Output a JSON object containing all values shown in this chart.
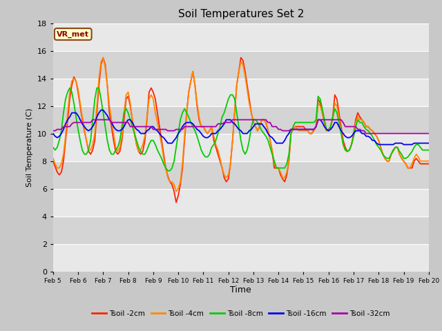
{
  "title": "Soil Temperatures Set 2",
  "xlabel": "Time",
  "ylabel": "Soil Temperature (C)",
  "ylim": [
    0,
    18
  ],
  "yticks": [
    0,
    2,
    4,
    6,
    8,
    10,
    12,
    14,
    16,
    18
  ],
  "annotation_text": "VR_met",
  "annotation_color": "#8b0000",
  "annotation_bg": "#ffffcc",
  "annotation_border": "#8b4513",
  "colors": {
    "Tsoil -2cm": "#ff2200",
    "Tsoil -4cm": "#ff8800",
    "Tsoil -8cm": "#00cc00",
    "Tsoil -16cm": "#0000ee",
    "Tsoil -32cm": "#aa00aa"
  },
  "series_labels": [
    "Tsoil -2cm",
    "Tsoil -4cm",
    "Tsoil -8cm",
    "Tsoil -16cm",
    "Tsoil -32cm"
  ],
  "xtick_labels": [
    "Feb 5",
    "Feb 6",
    "Feb 7",
    "Feb 8",
    "Feb 9",
    "Feb 10",
    "Feb 11",
    "Feb 12",
    "Feb 13",
    "Feb 14",
    "Feb 15",
    "Feb 16",
    "Feb 17",
    "Feb 18",
    "Feb 19",
    "Feb 20"
  ],
  "band_colors": [
    "#e8e8e8",
    "#d4d4d4"
  ],
  "fig_facecolor": "#c8c8c8",
  "data": {
    "x_days": [
      5.0,
      5.083,
      5.167,
      5.25,
      5.333,
      5.417,
      5.5,
      5.583,
      5.667,
      5.75,
      5.833,
      5.917,
      6.0,
      6.083,
      6.167,
      6.25,
      6.333,
      6.417,
      6.5,
      6.583,
      6.667,
      6.75,
      6.833,
      6.917,
      7.0,
      7.083,
      7.167,
      7.25,
      7.333,
      7.417,
      7.5,
      7.583,
      7.667,
      7.75,
      7.833,
      7.917,
      8.0,
      8.083,
      8.167,
      8.25,
      8.333,
      8.417,
      8.5,
      8.583,
      8.667,
      8.75,
      8.833,
      8.917,
      9.0,
      9.083,
      9.167,
      9.25,
      9.333,
      9.417,
      9.5,
      9.583,
      9.667,
      9.75,
      9.833,
      9.917,
      10.0,
      10.083,
      10.167,
      10.25,
      10.333,
      10.417,
      10.5,
      10.583,
      10.667,
      10.75,
      10.833,
      10.917,
      11.0,
      11.083,
      11.167,
      11.25,
      11.333,
      11.417,
      11.5,
      11.583,
      11.667,
      11.75,
      11.833,
      11.917,
      12.0,
      12.083,
      12.167,
      12.25,
      12.333,
      12.417,
      12.5,
      12.583,
      12.667,
      12.75,
      12.833,
      12.917,
      13.0,
      13.083,
      13.167,
      13.25,
      13.333,
      13.417,
      13.5,
      13.583,
      13.667,
      13.75,
      13.833,
      13.917,
      14.0,
      14.083,
      14.167,
      14.25,
      14.333,
      14.417,
      14.5,
      14.583,
      14.667,
      14.75,
      14.833,
      14.917,
      15.0,
      15.083,
      15.167,
      15.25,
      15.333,
      15.417,
      15.5,
      15.583,
      15.667,
      15.75,
      15.833,
      15.917,
      16.0,
      16.083,
      16.167,
      16.25,
      16.333,
      16.417,
      16.5,
      16.583,
      16.667,
      16.75,
      16.833,
      16.917,
      17.0,
      17.083,
      17.167,
      17.25,
      17.333,
      17.417,
      17.5,
      17.583,
      17.667,
      17.75,
      17.833,
      17.917,
      18.0,
      18.083,
      18.167,
      18.25,
      18.333,
      18.417,
      18.5,
      18.583,
      18.667,
      18.75,
      18.833,
      18.917,
      19.0,
      19.083,
      19.167,
      19.25,
      19.333,
      19.417,
      19.5,
      19.583,
      19.667,
      19.75,
      19.833,
      19.917,
      20.0
    ],
    "Tsoil -2cm": [
      8.0,
      7.6,
      7.2,
      7.0,
      7.2,
      8.0,
      9.5,
      11.0,
      12.5,
      13.5,
      14.1,
      13.8,
      13.0,
      12.0,
      11.0,
      10.2,
      9.5,
      8.7,
      8.5,
      8.8,
      9.5,
      11.5,
      13.5,
      15.0,
      15.5,
      15.0,
      13.5,
      11.5,
      10.5,
      9.5,
      8.7,
      8.5,
      8.7,
      9.5,
      11.0,
      12.5,
      12.7,
      12.0,
      11.0,
      10.0,
      9.2,
      8.7,
      8.5,
      8.7,
      9.5,
      11.0,
      13.0,
      13.3,
      13.0,
      12.5,
      11.5,
      10.5,
      9.5,
      8.5,
      7.5,
      6.9,
      6.5,
      6.3,
      5.8,
      5.0,
      5.5,
      6.3,
      7.5,
      9.5,
      11.5,
      13.0,
      13.8,
      14.5,
      13.5,
      12.0,
      11.0,
      10.5,
      10.5,
      10.2,
      10.0,
      10.2,
      10.5,
      9.5,
      9.0,
      8.5,
      8.0,
      7.5,
      6.8,
      6.5,
      6.7,
      7.8,
      9.5,
      11.5,
      13.5,
      14.5,
      15.5,
      15.3,
      14.5,
      13.5,
      12.5,
      11.5,
      10.8,
      10.5,
      10.2,
      10.5,
      11.0,
      11.0,
      10.8,
      10.2,
      9.5,
      8.7,
      7.5,
      7.5,
      7.5,
      7.0,
      6.7,
      6.5,
      7.0,
      8.0,
      10.0,
      10.3,
      10.5,
      10.5,
      10.5,
      10.5,
      10.5,
      10.3,
      10.2,
      10.0,
      10.0,
      10.3,
      10.5,
      12.5,
      12.2,
      11.5,
      10.8,
      10.2,
      10.3,
      10.5,
      11.2,
      12.8,
      12.5,
      11.5,
      10.5,
      9.5,
      9.0,
      8.7,
      8.8,
      9.2,
      10.0,
      11.0,
      11.5,
      11.2,
      11.0,
      10.8,
      10.5,
      10.5,
      10.3,
      10.2,
      10.0,
      9.8,
      9.5,
      9.0,
      8.5,
      8.2,
      8.0,
      8.0,
      8.5,
      8.8,
      9.0,
      9.0,
      8.5,
      8.2,
      8.0,
      7.8,
      7.5,
      7.5,
      7.5,
      8.0,
      8.2,
      8.0,
      7.8,
      7.8,
      7.8,
      7.8,
      7.8
    ],
    "Tsoil -4cm": [
      8.2,
      7.8,
      7.5,
      7.5,
      7.8,
      8.5,
      9.8,
      11.5,
      13.0,
      13.8,
      14.0,
      13.8,
      13.2,
      12.2,
      11.2,
      10.3,
      9.5,
      8.8,
      8.8,
      9.2,
      10.0,
      12.0,
      14.0,
      15.2,
      15.5,
      14.8,
      13.5,
      12.0,
      11.0,
      10.0,
      9.0,
      8.7,
      9.0,
      9.8,
      11.5,
      12.8,
      13.0,
      12.2,
      11.0,
      10.0,
      9.2,
      8.7,
      8.8,
      9.2,
      9.8,
      11.2,
      12.5,
      12.8,
      12.5,
      11.5,
      10.8,
      10.0,
      9.2,
      8.2,
      7.5,
      6.8,
      6.5,
      6.5,
      6.3,
      5.8,
      6.0,
      6.5,
      7.8,
      9.8,
      11.5,
      13.0,
      13.8,
      14.5,
      13.5,
      12.2,
      11.2,
      10.5,
      10.5,
      10.2,
      10.0,
      10.2,
      10.5,
      9.8,
      9.2,
      8.8,
      8.2,
      7.5,
      7.0,
      6.8,
      7.0,
      7.8,
      9.5,
      11.5,
      13.5,
      14.5,
      15.2,
      15.0,
      14.2,
      13.2,
      12.2,
      11.5,
      10.8,
      10.5,
      10.2,
      10.5,
      11.0,
      11.0,
      10.8,
      10.2,
      9.5,
      8.8,
      7.8,
      7.5,
      7.5,
      7.2,
      6.8,
      6.8,
      7.2,
      8.0,
      10.0,
      10.3,
      10.5,
      10.3,
      10.2,
      10.2,
      10.2,
      10.2,
      10.2,
      10.0,
      10.0,
      10.2,
      10.5,
      12.2,
      12.0,
      11.5,
      10.8,
      10.2,
      10.2,
      10.5,
      11.0,
      12.2,
      12.0,
      11.2,
      10.2,
      9.2,
      8.8,
      8.7,
      8.8,
      9.2,
      9.8,
      10.8,
      11.2,
      11.0,
      11.0,
      10.8,
      10.5,
      10.5,
      10.3,
      10.2,
      10.0,
      9.8,
      9.5,
      9.0,
      8.5,
      8.2,
      8.0,
      8.0,
      8.5,
      8.7,
      9.0,
      9.0,
      8.5,
      8.2,
      8.0,
      7.8,
      7.5,
      7.5,
      7.8,
      8.2,
      8.5,
      8.3,
      8.0,
      8.0,
      8.0,
      8.0,
      8.0
    ],
    "Tsoil -8cm": [
      9.0,
      8.8,
      9.0,
      9.5,
      10.2,
      11.5,
      12.5,
      13.0,
      13.3,
      13.0,
      12.2,
      11.2,
      10.3,
      9.5,
      8.8,
      8.5,
      8.5,
      8.8,
      9.5,
      11.0,
      12.5,
      13.3,
      13.3,
      12.5,
      11.5,
      10.5,
      9.5,
      8.8,
      8.5,
      8.5,
      8.8,
      9.0,
      9.5,
      10.5,
      11.5,
      11.8,
      11.5,
      11.0,
      10.5,
      10.0,
      9.5,
      9.0,
      8.7,
      8.5,
      8.5,
      8.8,
      9.2,
      9.5,
      9.5,
      9.2,
      8.8,
      8.5,
      8.2,
      7.8,
      7.5,
      7.3,
      7.3,
      7.5,
      8.0,
      9.0,
      10.0,
      11.0,
      11.5,
      11.8,
      11.5,
      11.2,
      10.8,
      10.5,
      10.2,
      9.8,
      9.3,
      8.8,
      8.5,
      8.3,
      8.3,
      8.5,
      9.0,
      9.2,
      9.5,
      10.0,
      10.5,
      11.2,
      11.5,
      12.0,
      12.5,
      12.8,
      12.8,
      12.5,
      11.5,
      10.5,
      9.5,
      8.8,
      8.5,
      8.8,
      9.5,
      10.5,
      11.0,
      11.0,
      10.8,
      10.5,
      10.2,
      10.0,
      9.8,
      9.5,
      9.0,
      8.5,
      8.0,
      7.5,
      7.5,
      7.5,
      7.5,
      7.5,
      7.8,
      8.5,
      10.0,
      10.5,
      10.8,
      10.8,
      10.8,
      10.8,
      10.8,
      10.8,
      10.8,
      10.8,
      10.8,
      10.8,
      11.0,
      12.7,
      12.5,
      11.8,
      11.0,
      10.3,
      10.2,
      10.5,
      11.2,
      11.8,
      11.5,
      10.8,
      10.0,
      9.2,
      8.8,
      8.7,
      8.8,
      9.2,
      9.8,
      10.5,
      11.0,
      10.8,
      10.8,
      10.5,
      10.3,
      10.2,
      10.0,
      9.8,
      9.5,
      9.2,
      9.0,
      8.8,
      8.5,
      8.3,
      8.2,
      8.2,
      8.5,
      8.8,
      9.0,
      9.0,
      8.7,
      8.5,
      8.2,
      8.2,
      8.3,
      8.5,
      8.7,
      9.0,
      9.2,
      9.2,
      9.0,
      8.8,
      8.8,
      8.8,
      8.8
    ],
    "Tsoil -16cm": [
      10.0,
      9.8,
      9.7,
      9.8,
      10.0,
      10.3,
      10.7,
      11.0,
      11.2,
      11.5,
      11.5,
      11.5,
      11.3,
      11.0,
      10.7,
      10.5,
      10.3,
      10.2,
      10.3,
      10.5,
      10.8,
      11.2,
      11.5,
      11.7,
      11.7,
      11.5,
      11.3,
      11.0,
      10.8,
      10.5,
      10.3,
      10.2,
      10.2,
      10.3,
      10.5,
      10.8,
      11.0,
      11.0,
      10.8,
      10.5,
      10.3,
      10.2,
      10.0,
      10.0,
      10.0,
      10.2,
      10.3,
      10.5,
      10.5,
      10.3,
      10.2,
      10.0,
      9.8,
      9.7,
      9.5,
      9.3,
      9.3,
      9.3,
      9.5,
      9.7,
      10.0,
      10.2,
      10.5,
      10.7,
      10.8,
      10.8,
      10.8,
      10.7,
      10.5,
      10.3,
      10.2,
      10.0,
      9.8,
      9.7,
      9.7,
      9.8,
      10.0,
      10.0,
      10.0,
      10.2,
      10.3,
      10.5,
      10.7,
      11.0,
      11.0,
      11.0,
      10.8,
      10.7,
      10.5,
      10.3,
      10.2,
      10.0,
      10.0,
      10.0,
      10.2,
      10.3,
      10.5,
      10.7,
      10.7,
      10.7,
      10.7,
      10.5,
      10.3,
      10.0,
      9.8,
      9.7,
      9.5,
      9.3,
      9.3,
      9.3,
      9.3,
      9.5,
      9.8,
      10.0,
      10.3,
      10.3,
      10.3,
      10.3,
      10.3,
      10.3,
      10.3,
      10.3,
      10.3,
      10.3,
      10.3,
      10.3,
      10.5,
      11.0,
      11.0,
      10.8,
      10.5,
      10.3,
      10.2,
      10.3,
      10.5,
      10.8,
      10.8,
      10.5,
      10.2,
      10.0,
      9.8,
      9.7,
      9.7,
      9.8,
      10.0,
      10.2,
      10.2,
      10.2,
      10.0,
      10.0,
      9.8,
      9.8,
      9.7,
      9.5,
      9.5,
      9.3,
      9.2,
      9.2,
      9.2,
      9.2,
      9.2,
      9.2,
      9.2,
      9.2,
      9.3,
      9.3,
      9.3,
      9.3,
      9.2,
      9.2,
      9.2,
      9.2,
      9.2,
      9.3,
      9.3,
      9.3,
      9.3,
      9.3,
      9.3,
      9.3,
      9.3
    ],
    "Tsoil -32cm": [
      10.2,
      10.2,
      10.3,
      10.3,
      10.3,
      10.5,
      10.5,
      10.5,
      10.5,
      10.7,
      10.8,
      10.8,
      10.8,
      10.8,
      10.8,
      10.8,
      10.8,
      10.8,
      10.8,
      11.0,
      11.0,
      11.0,
      11.0,
      11.0,
      11.0,
      11.0,
      11.0,
      11.0,
      10.8,
      10.8,
      10.8,
      10.8,
      10.8,
      10.8,
      10.8,
      10.8,
      10.8,
      10.5,
      10.5,
      10.5,
      10.5,
      10.5,
      10.5,
      10.5,
      10.5,
      10.5,
      10.5,
      10.5,
      10.3,
      10.3,
      10.3,
      10.3,
      10.3,
      10.3,
      10.3,
      10.2,
      10.2,
      10.2,
      10.2,
      10.3,
      10.3,
      10.3,
      10.3,
      10.5,
      10.5,
      10.5,
      10.5,
      10.5,
      10.5,
      10.5,
      10.5,
      10.5,
      10.5,
      10.5,
      10.5,
      10.5,
      10.5,
      10.5,
      10.5,
      10.7,
      10.7,
      10.7,
      10.8,
      10.8,
      10.8,
      10.8,
      11.0,
      11.0,
      11.0,
      11.0,
      11.0,
      11.0,
      11.0,
      11.0,
      11.0,
      11.0,
      11.0,
      11.0,
      11.0,
      11.0,
      11.0,
      11.0,
      11.0,
      10.8,
      10.8,
      10.5,
      10.5,
      10.5,
      10.3,
      10.3,
      10.2,
      10.2,
      10.2,
      10.2,
      10.3,
      10.3,
      10.3,
      10.3,
      10.3,
      10.3,
      10.3,
      10.3,
      10.3,
      10.3,
      10.3,
      10.3,
      10.5,
      11.0,
      11.0,
      11.0,
      11.0,
      11.0,
      11.0,
      11.0,
      11.0,
      11.0,
      11.0,
      11.0,
      11.0,
      10.8,
      10.5,
      10.5,
      10.5,
      10.5,
      10.5,
      10.5,
      10.3,
      10.3,
      10.2,
      10.2,
      10.0,
      10.0,
      10.0,
      10.0,
      10.0,
      10.0,
      10.0,
      10.0,
      10.0,
      10.0,
      10.0,
      10.0,
      10.0,
      10.0,
      10.0,
      10.0,
      10.0,
      10.0,
      10.0,
      10.0,
      10.0,
      10.0,
      10.0,
      10.0,
      10.0,
      10.0,
      10.0,
      10.0,
      10.0,
      10.0,
      10.0
    ]
  }
}
